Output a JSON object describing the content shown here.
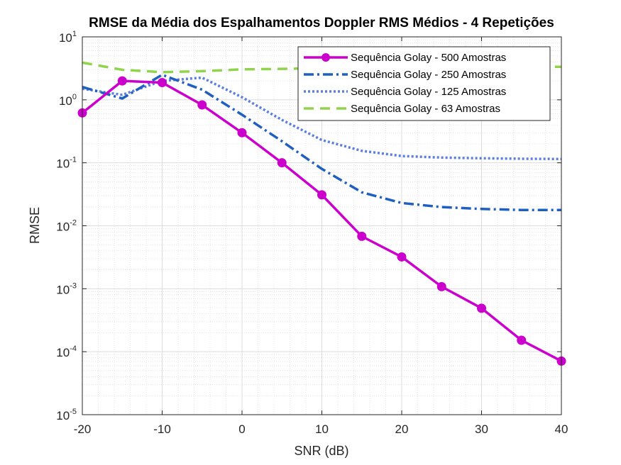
{
  "chart_data": {
    "type": "line",
    "title": "RMSE da Média dos Espalhamentos Doppler RMS Médios - 4 Repetições",
    "xlabel": "SNR (dB)",
    "ylabel": "RMSE",
    "xlim": [
      -20,
      40
    ],
    "ylim": [
      1e-05,
      10
    ],
    "yscale": "log",
    "grid": true,
    "minor_grid": true,
    "legend_position": "top-right",
    "x_ticks": [
      "-20",
      "-10",
      "0",
      "10",
      "20",
      "30",
      "40"
    ],
    "y_ticks": [
      {
        "base": "10",
        "exp": "-5"
      },
      {
        "base": "10",
        "exp": "-4"
      },
      {
        "base": "10",
        "exp": "-3"
      },
      {
        "base": "10",
        "exp": "-2"
      },
      {
        "base": "10",
        "exp": "-1"
      },
      {
        "base": "10",
        "exp": "0"
      },
      {
        "base": "10",
        "exp": "1"
      }
    ],
    "x": [
      -20,
      -15,
      -10,
      -5,
      0,
      5,
      10,
      15,
      20,
      25,
      30,
      35,
      40
    ],
    "series": [
      {
        "name": "Sequência Golay - 500 Amostras",
        "color": "#CC00CC",
        "style": "solid-marker",
        "values": [
          0.62,
          2.0,
          1.88,
          0.83,
          0.3,
          0.1,
          0.031,
          0.0068,
          0.0032,
          0.00108,
          0.00049,
          0.000152,
          7.1e-05
        ]
      },
      {
        "name": "Sequência Golay - 250 Amostras",
        "color": "#1F5FBF",
        "style": "dash-dot",
        "values": [
          1.6,
          1.05,
          2.5,
          1.45,
          0.58,
          0.22,
          0.08,
          0.034,
          0.023,
          0.0198,
          0.0185,
          0.0178,
          0.0178
        ]
      },
      {
        "name": "Sequência Golay - 125 Amostras",
        "color": "#5B7FE0",
        "style": "dotted",
        "values": [
          1.5,
          1.2,
          2.0,
          2.25,
          1.1,
          0.48,
          0.23,
          0.155,
          0.128,
          0.121,
          0.118,
          0.116,
          0.115
        ]
      },
      {
        "name": "Sequência Golay - 63 Amostras",
        "color": "#8FD44A",
        "style": "dashed",
        "values": [
          3.9,
          3.0,
          2.75,
          2.85,
          3.05,
          3.1,
          3.2,
          3.2,
          3.25,
          3.25,
          3.3,
          3.3,
          3.35
        ]
      }
    ]
  }
}
